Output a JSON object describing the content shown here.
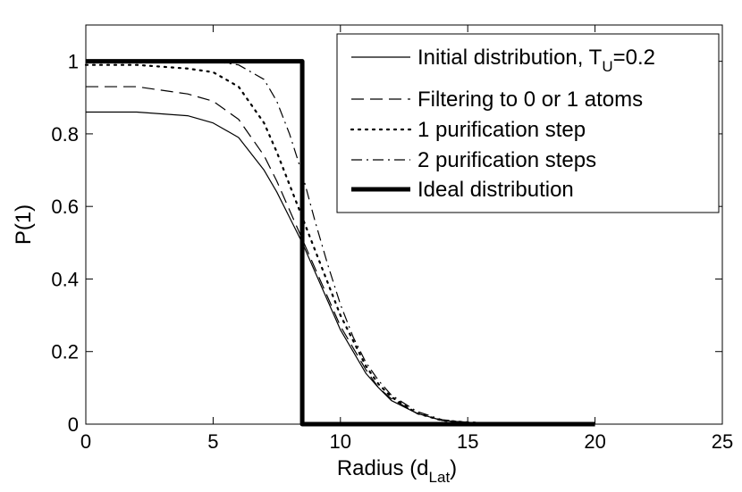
{
  "chart_data": {
    "type": "line",
    "title": "",
    "xlabel": "Radius (d",
    "xlabel_sub": "Lat",
    "xlabel_suffix": ")",
    "ylabel": "P(1)",
    "xlim": [
      0,
      25
    ],
    "ylim": [
      0,
      1.1
    ],
    "xticks": [
      0,
      5,
      10,
      15,
      20,
      25
    ],
    "xtick_labels": [
      "0",
      "5",
      "10",
      "15",
      "20",
      "25"
    ],
    "yticks": [
      0,
      0.2,
      0.4,
      0.6,
      0.8,
      1
    ],
    "ytick_labels": [
      "0",
      "0.2",
      "0.4",
      "0.6",
      "0.8",
      "1"
    ],
    "grid": false,
    "legend_position": "top-right",
    "series": [
      {
        "name": "Initial distribution, T",
        "name_sub": "U",
        "name_suffix": "=0.2",
        "style": "solid",
        "x": [
          0,
          2,
          4,
          5,
          6,
          7,
          7.5,
          8,
          8.5,
          9,
          9.5,
          10,
          10.5,
          11,
          11.5,
          12,
          13,
          14,
          15,
          16,
          17,
          18,
          19,
          20
        ],
        "y": [
          0.86,
          0.86,
          0.85,
          0.83,
          0.79,
          0.7,
          0.64,
          0.57,
          0.5,
          0.42,
          0.34,
          0.26,
          0.2,
          0.14,
          0.1,
          0.065,
          0.03,
          0.01,
          0.005,
          0.002,
          0.001,
          0.0,
          0.0,
          0.0
        ]
      },
      {
        "name": "Filtering to 0 or 1 atoms",
        "style": "dashed",
        "x": [
          0,
          2,
          4,
          5,
          6,
          7,
          7.5,
          8,
          8.5,
          9,
          9.5,
          10,
          10.5,
          11,
          11.5,
          12,
          13,
          14,
          15,
          16,
          17,
          18,
          19,
          20
        ],
        "y": [
          0.93,
          0.93,
          0.91,
          0.89,
          0.84,
          0.74,
          0.67,
          0.59,
          0.51,
          0.43,
          0.35,
          0.27,
          0.21,
          0.15,
          0.1,
          0.07,
          0.03,
          0.01,
          0.005,
          0.002,
          0.001,
          0.0,
          0.0,
          0.0
        ]
      },
      {
        "name": "1 purification step",
        "style": "dotted",
        "x": [
          0,
          2,
          4,
          5,
          6,
          7,
          7.5,
          8,
          8.5,
          9,
          9.5,
          10,
          10.5,
          11,
          11.5,
          12,
          13,
          14,
          15,
          16,
          17,
          18,
          19,
          20
        ],
        "y": [
          0.99,
          0.99,
          0.98,
          0.97,
          0.93,
          0.83,
          0.75,
          0.66,
          0.57,
          0.48,
          0.39,
          0.3,
          0.23,
          0.16,
          0.11,
          0.075,
          0.03,
          0.01,
          0.005,
          0.002,
          0.001,
          0.0,
          0.0,
          0.0
        ]
      },
      {
        "name": "2 purification steps",
        "style": "dashdot",
        "x": [
          0,
          2,
          4,
          5,
          6,
          7,
          7.5,
          8,
          8.5,
          9,
          9.5,
          10,
          10.5,
          11,
          11.5,
          12,
          13,
          14,
          15,
          16,
          17,
          18,
          19,
          20
        ],
        "y": [
          1.0,
          1.0,
          1.0,
          1.0,
          0.99,
          0.95,
          0.89,
          0.8,
          0.69,
          0.56,
          0.44,
          0.33,
          0.24,
          0.17,
          0.12,
          0.08,
          0.035,
          0.012,
          0.005,
          0.002,
          0.001,
          0.0,
          0.0,
          0.0
        ]
      },
      {
        "name": "Ideal distribution",
        "style": "thick",
        "x": [
          0,
          8.5,
          8.5,
          20
        ],
        "y": [
          1,
          1,
          0,
          0
        ]
      }
    ]
  }
}
